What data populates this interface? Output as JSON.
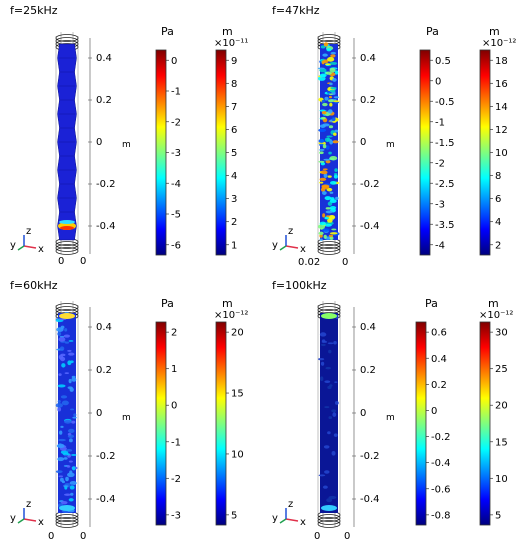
{
  "panels": [
    {
      "title": "f=25kHz",
      "pressure_unit": "Pa",
      "pressure_ticks": [
        "0",
        "-1",
        "-2",
        "-3",
        "-4",
        "-5",
        "-6"
      ],
      "disp_unit": "m",
      "disp_exp": "×10⁻¹¹",
      "disp_ticks": [
        "9",
        "8",
        "7",
        "6",
        "5",
        "4",
        "3",
        "2",
        "1"
      ],
      "z_ticks": [
        "0.4",
        "0.2",
        "0",
        "-0.2",
        "-0.4"
      ],
      "axis_unit": "m",
      "bottom_ticks": [
        "0",
        "0"
      ],
      "style": "smooth"
    },
    {
      "title": "f=47kHz",
      "pressure_unit": "Pa",
      "pressure_ticks": [
        "0.5",
        "0",
        "-0.5",
        "-1",
        "-1.5",
        "-2",
        "-2.5",
        "-3",
        "-3.5",
        "-4"
      ],
      "disp_unit": "m",
      "disp_exp": "×10⁻¹²",
      "disp_ticks": [
        "18",
        "16",
        "14",
        "12",
        "10",
        "8",
        "6",
        "4",
        "2"
      ],
      "z_ticks": [
        "0.4",
        "0.2",
        "0",
        "-0.2",
        "-0.4"
      ],
      "axis_unit": "m",
      "bottom_ticks": [
        "0.02",
        "0"
      ],
      "style": "mixed"
    },
    {
      "title": "f=60kHz",
      "pressure_unit": "Pa",
      "pressure_ticks": [
        "2",
        "1",
        "0",
        "-1",
        "-2",
        "-3"
      ],
      "disp_unit": "m",
      "disp_exp": "×10⁻¹²",
      "disp_ticks": [
        "20",
        "15",
        "10",
        "5"
      ],
      "z_ticks": [
        "0.4",
        "0.2",
        "0",
        "-0.2",
        "-0.4"
      ],
      "axis_unit": "m",
      "bottom_ticks": [
        "0",
        "0"
      ],
      "style": "blue"
    },
    {
      "title": "f=100kHz",
      "pressure_unit": "Pa",
      "pressure_ticks": [
        "0.6",
        "0.4",
        "0.2",
        "0",
        "-0.2",
        "-0.4",
        "-0.6",
        "-0.8"
      ],
      "disp_unit": "m",
      "disp_exp": "×10⁻¹²",
      "disp_ticks": [
        "30",
        "25",
        "20",
        "15",
        "10",
        "5"
      ],
      "z_ticks": [
        "0.4",
        "0.2",
        "0",
        "-0.2",
        "-0.4"
      ],
      "axis_unit": "m",
      "bottom_ticks": [
        "0",
        "0"
      ],
      "style": "dark"
    }
  ],
  "triad": {
    "x": "x",
    "y": "y",
    "z": "z"
  },
  "colors": {
    "jet": [
      "#00007f",
      "#0000ff",
      "#007fff",
      "#00ffff",
      "#7fff7f",
      "#ffff00",
      "#ff7f00",
      "#ff0000",
      "#7f0000"
    ]
  }
}
